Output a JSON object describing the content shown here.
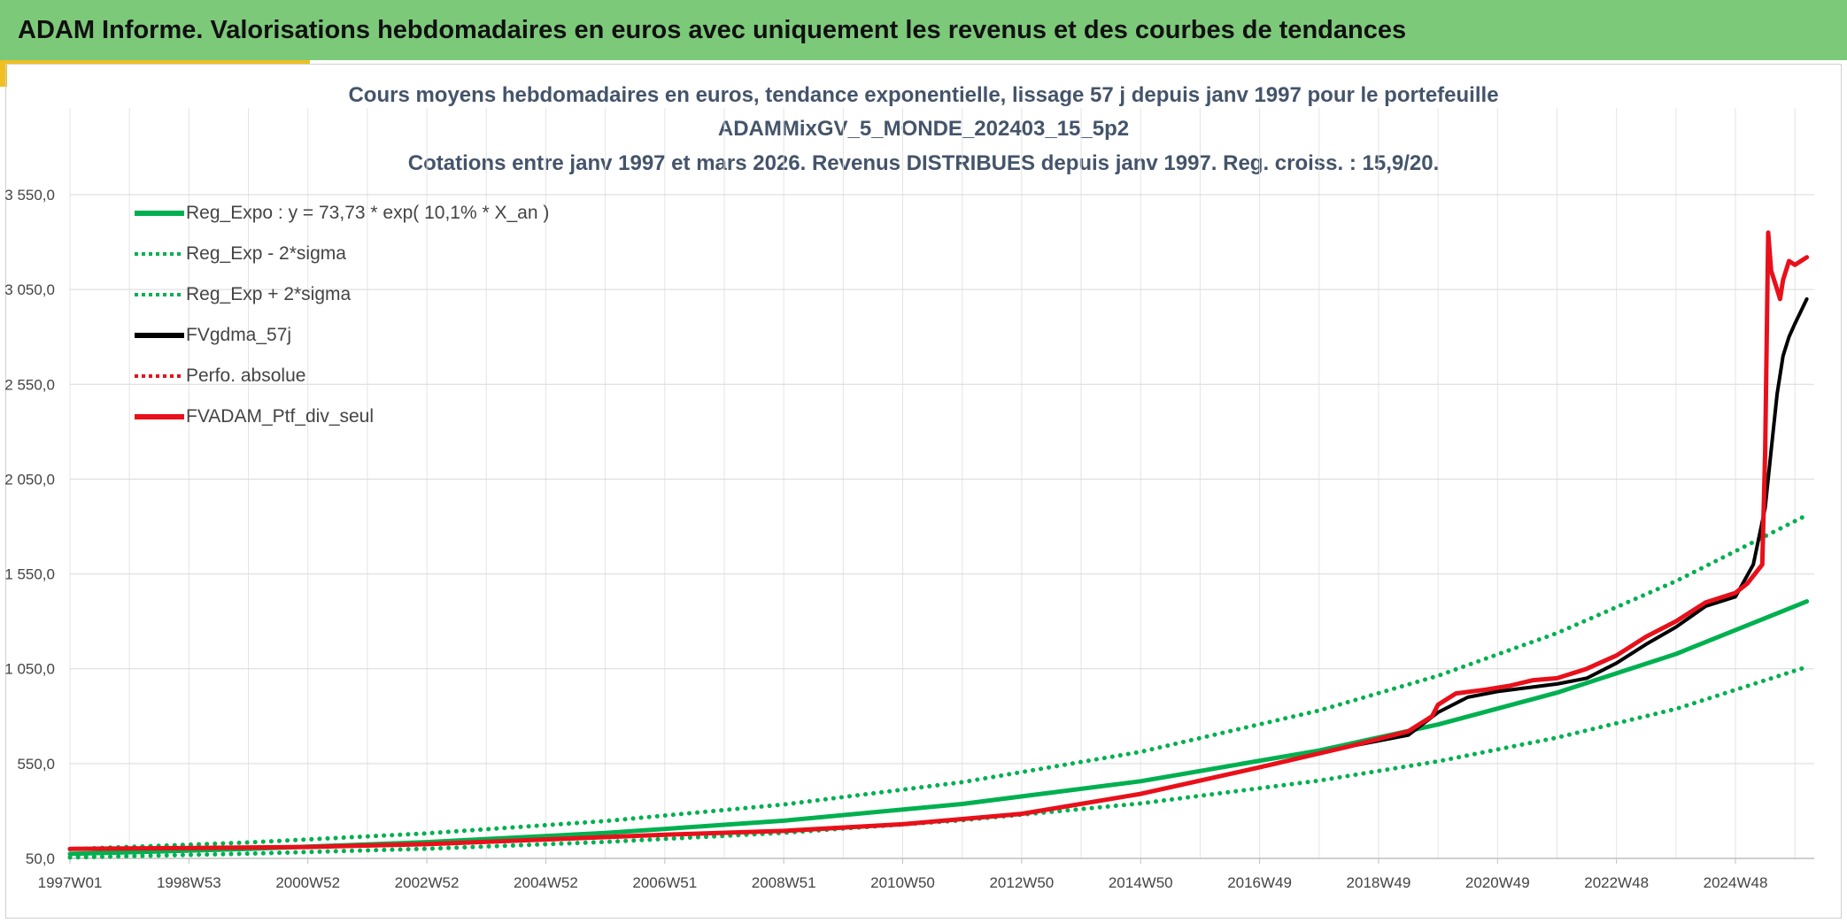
{
  "banner": {
    "title": "ADAM Informe. Valorisations hebdomadaires en euros avec uniquement les revenus et des courbes de tendances"
  },
  "chart_data": {
    "type": "line",
    "title_lines": [
      "Cours moyens hebdomadaires en euros, tendance exponentielle, lissage 57 j depuis janv 1997 pour le portefeuille",
      "ADAMMixGV_5_MONDE_202403_15_5p2",
      "Cotations entre janv 1997 et mars 2026. Revenus DISTRIBUES depuis janv 1997. Reg. croiss. : 15,9/20."
    ],
    "xlabel": "",
    "ylabel": "",
    "x_ticks": [
      "1997W01",
      "1998W53",
      "2000W52",
      "2002W52",
      "2004W52",
      "2006W51",
      "2008W51",
      "2010W50",
      "2012W50",
      "2014W50",
      "2016W49",
      "2018W49",
      "2020W49",
      "2022W48",
      "2024W48"
    ],
    "y_ticks": [
      "50,0",
      "550,0",
      "1 050,0",
      "1 550,0",
      "2 050,0",
      "2 550,0",
      "3 050,0",
      "3 550,0"
    ],
    "ylim": [
      50,
      3550
    ],
    "x_range": [
      1997.0,
      2026.25
    ],
    "grid": true,
    "legend_position": "top-left",
    "series": [
      {
        "name": "Reg_Expo : y = 73,73 * exp( 10,1% *  X_an )",
        "color": "#00b050",
        "style": "solid",
        "x": [
          1997.0,
          2000.0,
          2003.0,
          2006.0,
          2009.0,
          2012.0,
          2015.0,
          2018.0,
          2020.0,
          2022.0,
          2024.0,
          2026.2
        ],
        "values": [
          74,
          100,
          136,
          184,
          249,
          337,
          457,
          619,
          756,
          924,
          1128,
          1405
        ]
      },
      {
        "name": "Reg_Exp - 2*sigma",
        "color": "#00b050",
        "style": "dotted",
        "x": [
          1997.0,
          2000.0,
          2003.0,
          2006.0,
          2009.0,
          2012.0,
          2015.0,
          2018.0,
          2020.0,
          2022.0,
          2024.0,
          2026.2
        ],
        "values": [
          55,
          75,
          101,
          137,
          185,
          251,
          340,
          460,
          562,
          687,
          838,
          1060
        ]
      },
      {
        "name": "Reg_Exp + 2*sigma",
        "color": "#00b050",
        "style": "dotted",
        "x": [
          1997.0,
          2000.0,
          2003.0,
          2006.0,
          2009.0,
          2012.0,
          2015.0,
          2018.0,
          2020.0,
          2022.0,
          2024.0,
          2026.2
        ],
        "values": [
          99,
          134,
          182,
          247,
          334,
          452,
          612,
          830,
          1013,
          1238,
          1512,
          1860
        ]
      },
      {
        "name": "FVgdma_57j",
        "color": "#000000",
        "style": "solid",
        "x": [
          1997.0,
          1999.0,
          2001.0,
          2003.0,
          2005.0,
          2007.0,
          2009.0,
          2011.0,
          2013.0,
          2015.0,
          2017.0,
          2018.5,
          2019.5,
          2020.0,
          2020.5,
          2021.0,
          2021.5,
          2022.0,
          2022.5,
          2023.0,
          2023.5,
          2024.0,
          2024.5,
          2025.0,
          2025.3,
          2025.5,
          2025.6,
          2025.7,
          2025.8,
          2025.9,
          2026.0,
          2026.2
        ],
        "values": [
          100,
          105,
          110,
          125,
          150,
          175,
          195,
          230,
          285,
          390,
          530,
          640,
          700,
          820,
          900,
          930,
          950,
          970,
          1000,
          1080,
          1180,
          1270,
          1380,
          1430,
          1600,
          1900,
          2200,
          2500,
          2700,
          2800,
          2870,
          3000
        ]
      },
      {
        "name": "Perfo. absolue",
        "color": "#e8101a",
        "style": "dotted",
        "x": [
          1997.0,
          2026.2
        ],
        "values": [
          100,
          100
        ]
      },
      {
        "name": "FVADAM_Ptf_div_seul",
        "color": "#e8101a",
        "style": "solid",
        "x": [
          1997.0,
          1999.0,
          2001.0,
          2003.0,
          2005.0,
          2007.0,
          2009.0,
          2011.0,
          2013.0,
          2015.0,
          2017.0,
          2018.5,
          2019.5,
          2019.9,
          2020.0,
          2020.3,
          2020.8,
          2021.2,
          2021.6,
          2022.0,
          2022.5,
          2023.0,
          2023.5,
          2024.0,
          2024.5,
          2025.0,
          2025.2,
          2025.45,
          2025.5,
          2025.55,
          2025.6,
          2025.7,
          2025.75,
          2025.8,
          2025.9,
          2026.0,
          2026.1,
          2026.2
        ],
        "values": [
          100,
          105,
          110,
          125,
          150,
          175,
          195,
          230,
          285,
          390,
          530,
          640,
          720,
          800,
          860,
          920,
          940,
          960,
          990,
          1000,
          1050,
          1120,
          1220,
          1300,
          1400,
          1450,
          1500,
          1600,
          2200,
          3350,
          3150,
          3050,
          3000,
          3100,
          3200,
          3180,
          3200,
          3220
        ]
      }
    ]
  }
}
